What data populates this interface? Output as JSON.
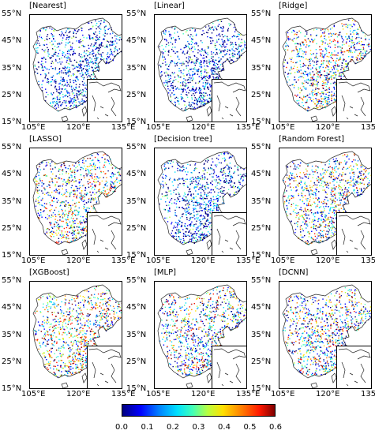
{
  "panels": [
    {
      "title": "[Nearest]",
      "style": "low"
    },
    {
      "title": "[Linear]",
      "style": "low"
    },
    {
      "title": "[Ridge]",
      "style": "mid"
    },
    {
      "title": "[LASSO]",
      "style": "mid"
    },
    {
      "title": "[Decision tree]",
      "style": "low"
    },
    {
      "title": "[Random Forest]",
      "style": "mid"
    },
    {
      "title": "[XGBoost]",
      "style": "high"
    },
    {
      "title": "[MLP]",
      "style": "mid"
    },
    {
      "title": "[DCNN]",
      "style": "mid"
    }
  ],
  "axes": {
    "lat_labels": [
      "55°N",
      "45°N",
      "35°N",
      "25°N",
      "15°N"
    ],
    "lon_labels": [
      "105°E",
      "120°E",
      "135°E"
    ]
  },
  "colorbar": {
    "ticks": [
      "0.0",
      "0.1",
      "0.2",
      "0.3",
      "0.4",
      "0.5",
      "0.6"
    ],
    "colors": [
      "#00007f",
      "#0000ff",
      "#0080ff",
      "#00e0ff",
      "#40ffb8",
      "#b8ff40",
      "#ffe000",
      "#ff8000",
      "#ff1800",
      "#7f0000"
    ]
  }
}
